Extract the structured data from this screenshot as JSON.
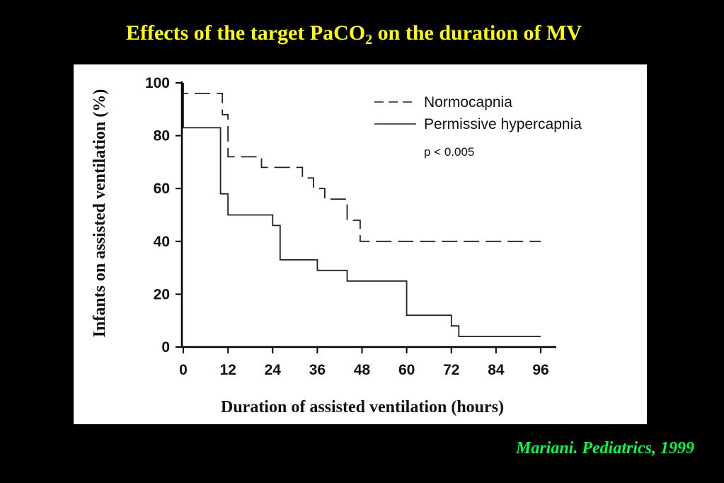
{
  "slide": {
    "title_main": "Effects of the target PaCO",
    "title_sub": "2",
    "title_rest": " on the duration of MV",
    "citation": "Mariani. Pediatrics, 1999"
  },
  "colors": {
    "title": "#ffff00",
    "citation": "#00ff44",
    "background": "#000000",
    "panel": "#ffffff"
  },
  "chart_data": {
    "type": "line",
    "subtype": "kaplan-meier-step",
    "xlabel": "Duration of assisted ventilation (hours)",
    "ylabel": "Infants on assisted ventilation (%)",
    "xlim": [
      0,
      96
    ],
    "ylim": [
      0,
      100
    ],
    "xticks": [
      0,
      12,
      24,
      36,
      48,
      60,
      72,
      84,
      96
    ],
    "yticks": [
      0,
      20,
      40,
      60,
      80,
      100
    ],
    "grid": false,
    "legend_position": "top-right",
    "annotation": "p < 0.005",
    "series": [
      {
        "name": "Normocapnia",
        "style": "dashed",
        "points": [
          [
            0,
            100
          ],
          [
            0,
            96
          ],
          [
            10.5,
            96
          ],
          [
            10.5,
            88
          ],
          [
            12,
            88
          ],
          [
            12,
            72
          ],
          [
            21,
            72
          ],
          [
            21,
            68
          ],
          [
            32,
            68
          ],
          [
            32,
            64
          ],
          [
            35,
            64
          ],
          [
            35,
            60
          ],
          [
            38,
            60
          ],
          [
            38,
            56
          ],
          [
            44,
            56
          ],
          [
            44,
            48
          ],
          [
            47.5,
            48
          ],
          [
            47.5,
            40
          ],
          [
            96,
            40
          ]
        ]
      },
      {
        "name": "Permissive hypercapnia",
        "style": "solid",
        "points": [
          [
            0,
            100
          ],
          [
            0,
            83
          ],
          [
            10,
            83
          ],
          [
            10,
            58
          ],
          [
            12,
            58
          ],
          [
            12,
            50
          ],
          [
            24,
            50
          ],
          [
            24,
            46
          ],
          [
            26,
            46
          ],
          [
            26,
            33
          ],
          [
            36,
            33
          ],
          [
            36,
            29
          ],
          [
            44,
            29
          ],
          [
            44,
            25
          ],
          [
            60,
            25
          ],
          [
            60,
            12
          ],
          [
            72,
            12
          ],
          [
            72,
            8
          ],
          [
            74,
            8
          ],
          [
            74,
            4
          ],
          [
            96,
            4
          ]
        ]
      }
    ]
  }
}
